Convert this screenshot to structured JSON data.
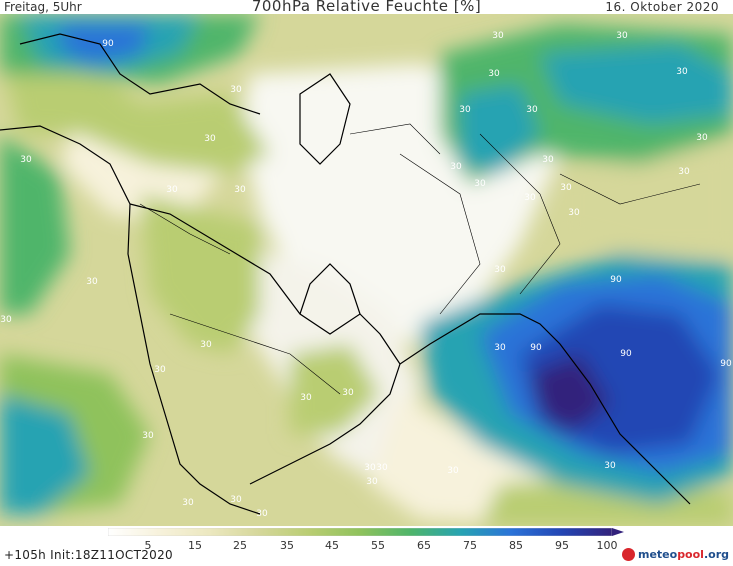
{
  "header": {
    "left": "Freitag, 5Uhr",
    "title": "700hPa Relative Feuchte [%]",
    "date": "16. Oktober 2020"
  },
  "footer": {
    "run": "+105h Init:18Z11OCT2020",
    "brand_meteo": "meteo",
    "brand_pool": "pool",
    "brand_org": ".org"
  },
  "legend": {
    "unit": "%",
    "ticks": [
      "5",
      "15",
      "25",
      "35",
      "45",
      "55",
      "65",
      "75",
      "85",
      "95",
      "100"
    ],
    "colors": [
      "#ffffff",
      "#f7f2dc",
      "#ece8c0",
      "#d5d79a",
      "#b9cd72",
      "#8fc25c",
      "#4fb56a",
      "#27a3b2",
      "#2b73d8",
      "#2346b4",
      "#33227c"
    ]
  },
  "contour_labels": {
    "values": [
      "90",
      "30",
      "30",
      "30",
      "30",
      "30",
      "30",
      "30",
      "30",
      "30",
      "30",
      "30",
      "30",
      "30",
      "30",
      "30",
      "30",
      "30",
      "30",
      "30",
      "30",
      "30",
      "30",
      "30",
      "30",
      "30",
      "30",
      "30",
      "30",
      "30",
      "30",
      "30",
      "30",
      "30",
      "30",
      "90",
      "90",
      "90",
      "90",
      "30",
      "30"
    ]
  }
}
